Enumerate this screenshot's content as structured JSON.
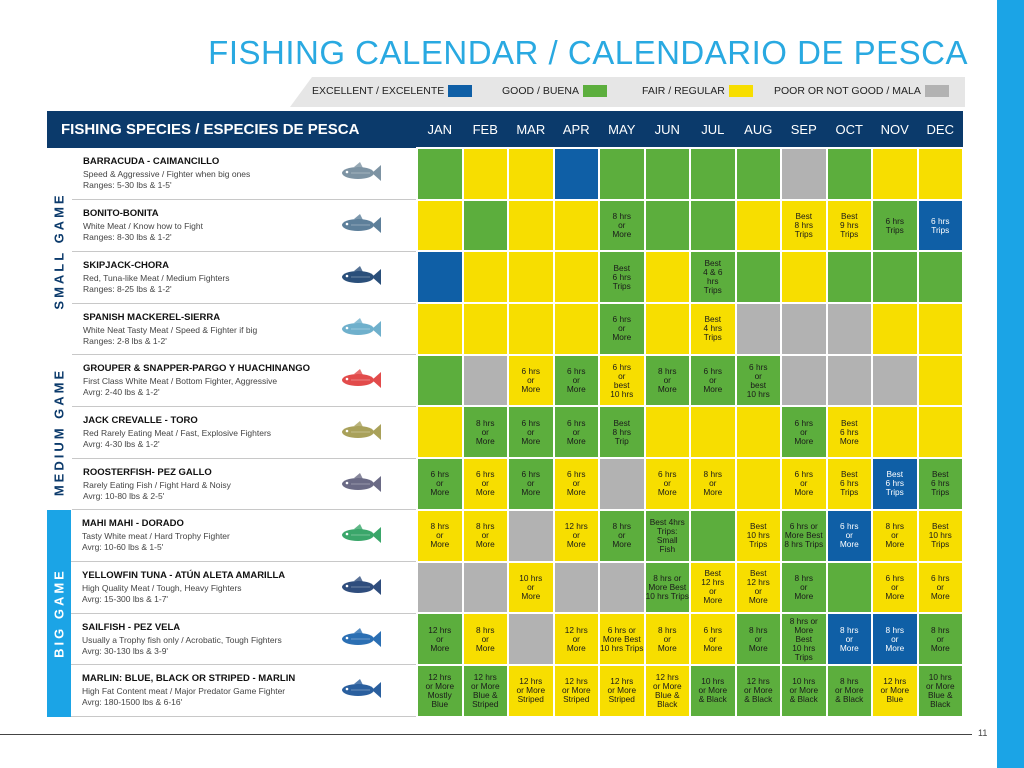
{
  "title": "FISHING CALENDAR / CALENDARIO DE PESCA",
  "page_number": "11",
  "colors": {
    "E": "#0f5fa6",
    "G": "#5cae3d",
    "F": "#f7de00",
    "P": "#b2b2b2",
    "accent": "#29a9e1",
    "header": "#0b3a6b"
  },
  "legend": [
    {
      "label": "EXCELLENT / EXCELENTE",
      "code": "E"
    },
    {
      "label": "GOOD / BUENA",
      "code": "G"
    },
    {
      "label": "FAIR / REGULAR",
      "code": "F"
    },
    {
      "label": "POOR OR NOT GOOD / MALA",
      "code": "P"
    }
  ],
  "header": {
    "species_label": "FISHING SPECIES / ESPECIES DE PESCA",
    "months": [
      "JAN",
      "FEB",
      "MAR",
      "APR",
      "MAY",
      "JUN",
      "JUL",
      "AUG",
      "SEP",
      "OCT",
      "NOV",
      "DEC"
    ]
  },
  "groups": [
    {
      "label": "SMALL GAME",
      "rows": 4
    },
    {
      "label": "MEDIUM GAME",
      "rows": 3
    },
    {
      "label": "BIG GAME",
      "rows": 4
    }
  ],
  "species": [
    {
      "name": "BARRACUDA - CAIMANCILLO",
      "desc1": "Speed & Aggressive / Fighter when big ones",
      "desc2": "Ranges: 5-30 lbs & 1-5'",
      "icon": "barracuda-icon",
      "months": [
        [
          "G",
          ""
        ],
        [
          "F",
          ""
        ],
        [
          "F",
          ""
        ],
        [
          "E",
          ""
        ],
        [
          "G",
          ""
        ],
        [
          "G",
          ""
        ],
        [
          "G",
          ""
        ],
        [
          "G",
          ""
        ],
        [
          "P",
          ""
        ],
        [
          "G",
          ""
        ],
        [
          "F",
          ""
        ],
        [
          "F",
          ""
        ]
      ]
    },
    {
      "name": "BONITO-BONITA",
      "desc1": "White Meat / Know how to Fight",
      "desc2": "Ranges: 8-30 lbs & 1-2'",
      "icon": "bonito-icon",
      "months": [
        [
          "F",
          ""
        ],
        [
          "G",
          ""
        ],
        [
          "F",
          ""
        ],
        [
          "F",
          ""
        ],
        [
          "G",
          "8 hrs\nor\nMore"
        ],
        [
          "G",
          ""
        ],
        [
          "G",
          ""
        ],
        [
          "F",
          ""
        ],
        [
          "F",
          "Best\n8 hrs\nTrips"
        ],
        [
          "F",
          "Best\n9 hrs\nTrips"
        ],
        [
          "G",
          "6 hrs\nTrips"
        ],
        [
          "E",
          "6 hrs\nTrips"
        ]
      ]
    },
    {
      "name": "SKIPJACK-CHORA",
      "desc1": "Red, Tuna-like Meat / Medium Fighters",
      "desc2": "Ranges: 8-25 lbs & 1-2'",
      "icon": "skipjack-icon",
      "months": [
        [
          "E",
          ""
        ],
        [
          "F",
          ""
        ],
        [
          "F",
          ""
        ],
        [
          "F",
          ""
        ],
        [
          "G",
          "Best\n6 hrs\nTrips"
        ],
        [
          "F",
          ""
        ],
        [
          "G",
          "Best\n4 & 6\nhrs\nTrips"
        ],
        [
          "G",
          ""
        ],
        [
          "F",
          ""
        ],
        [
          "G",
          ""
        ],
        [
          "G",
          ""
        ],
        [
          "G",
          ""
        ]
      ]
    },
    {
      "name": "SPANISH MACKEREL-SIERRA",
      "desc1": "White Neat Tasty Meat / Speed & Fighter if big",
      "desc2": "Ranges: 2-8 lbs & 1-2'",
      "icon": "mackerel-icon",
      "months": [
        [
          "F",
          ""
        ],
        [
          "F",
          ""
        ],
        [
          "F",
          ""
        ],
        [
          "F",
          ""
        ],
        [
          "G",
          "6 hrs\nor\nMore"
        ],
        [
          "F",
          ""
        ],
        [
          "F",
          "Best\n4 hrs\nTrips"
        ],
        [
          "P",
          ""
        ],
        [
          "P",
          ""
        ],
        [
          "P",
          ""
        ],
        [
          "F",
          ""
        ],
        [
          "F",
          ""
        ]
      ]
    },
    {
      "name": "GROUPER & SNAPPER-PARGO Y HUACHINANGO",
      "desc1": "First Class White Meat / Bottom Fighter, Aggressive",
      "desc2": "Avrg: 2-40 lbs & 1-2'",
      "icon": "snapper-icon",
      "months": [
        [
          "G",
          ""
        ],
        [
          "P",
          ""
        ],
        [
          "F",
          "6 hrs\nor\nMore"
        ],
        [
          "G",
          "6 hrs\nor\nMore"
        ],
        [
          "F",
          "6 hrs\nor\nbest\n10 hrs"
        ],
        [
          "G",
          "8 hrs\nor\nMore"
        ],
        [
          "G",
          "6 hrs\nor\nMore"
        ],
        [
          "G",
          "6 hrs\nor\nbest\n10 hrs"
        ],
        [
          "P",
          ""
        ],
        [
          "P",
          ""
        ],
        [
          "P",
          ""
        ],
        [
          "F",
          ""
        ]
      ]
    },
    {
      "name": "JACK CREVALLE - TORO",
      "desc1": "Red Rarely Eating Meat / Fast, Explosive Fighters",
      "desc2": "Avrg: 4-30 lbs & 1-2'",
      "icon": "jack-icon",
      "months": [
        [
          "F",
          ""
        ],
        [
          "G",
          "8 hrs\nor\nMore"
        ],
        [
          "G",
          "6 hrs\nor\nMore"
        ],
        [
          "G",
          "6 hrs\nor\nMore"
        ],
        [
          "G",
          "Best\n8 hrs\nTrip"
        ],
        [
          "F",
          ""
        ],
        [
          "F",
          ""
        ],
        [
          "F",
          ""
        ],
        [
          "G",
          "6 hrs\nor\nMore"
        ],
        [
          "F",
          "Best\n6 hrs\nMore"
        ],
        [
          "F",
          ""
        ],
        [
          "F",
          ""
        ]
      ]
    },
    {
      "name": "ROOSTERFISH- PEZ GALLO",
      "desc1": "Rarely Eating Fish / Fight Hard & Noisy",
      "desc2": "Avrg: 10-80 lbs & 2-5'",
      "icon": "roosterfish-icon",
      "months": [
        [
          "G",
          "6 hrs\nor\nMore"
        ],
        [
          "F",
          "6 hrs\nor\nMore"
        ],
        [
          "G",
          "6 hrs\nor\nMore"
        ],
        [
          "F",
          "6 hrs\nor\nMore"
        ],
        [
          "P",
          ""
        ],
        [
          "F",
          "6 hrs\nor\nMore"
        ],
        [
          "F",
          "8 hrs\nor\nMore"
        ],
        [
          "F",
          ""
        ],
        [
          "F",
          "6 hrs\nor\nMore"
        ],
        [
          "F",
          "Best\n6 hrs\nTrips"
        ],
        [
          "E",
          "Best\n6 hrs\nTrips"
        ],
        [
          "G",
          "Best\n6 hrs\nTrips"
        ]
      ]
    },
    {
      "name": "MAHI MAHI - DORADO",
      "desc1": "Tasty White meat / Hard Trophy Fighter",
      "desc2": "Avrg: 10-60 lbs & 1-5'",
      "icon": "dorado-icon",
      "months": [
        [
          "F",
          "8 hrs\nor\nMore"
        ],
        [
          "F",
          "8 hrs\nor\nMore"
        ],
        [
          "P",
          ""
        ],
        [
          "F",
          "12 hrs\nor\nMore"
        ],
        [
          "G",
          "8 hrs\nor\nMore"
        ],
        [
          "G",
          "Best 4hrs\nTrips:\nSmall\nFish"
        ],
        [
          "G",
          ""
        ],
        [
          "F",
          "Best\n10 hrs\nTrips"
        ],
        [
          "G",
          "6 hrs or\nMore Best\n8 hrs Trips"
        ],
        [
          "E",
          "6 hrs\nor\nMore"
        ],
        [
          "F",
          "8 hrs\nor\nMore"
        ],
        [
          "F",
          "Best\n10 hrs\nTrips"
        ]
      ]
    },
    {
      "name": "YELLOWFIN TUNA - ATÚN ALETA AMARILLA",
      "desc1": "High Quality Meat / Tough, Heavy Fighters",
      "desc2": "Avrg: 15-300 lbs & 1-7'",
      "icon": "tuna-icon",
      "months": [
        [
          "P",
          ""
        ],
        [
          "P",
          ""
        ],
        [
          "F",
          "10 hrs\nor\nMore"
        ],
        [
          "P",
          ""
        ],
        [
          "P",
          ""
        ],
        [
          "G",
          "8 hrs or\nMore Best\n10 hrs Trips"
        ],
        [
          "F",
          "Best\n12 hrs\nor\nMore"
        ],
        [
          "F",
          "Best\n12 hrs\nor\nMore"
        ],
        [
          "G",
          "8 hrs\nor\nMore"
        ],
        [
          "G",
          ""
        ],
        [
          "F",
          "6 hrs\nor\nMore"
        ],
        [
          "F",
          "6 hrs\nor\nMore"
        ]
      ]
    },
    {
      "name": "SAILFISH - PEZ VELA",
      "desc1": "Usually a Trophy fish only / Acrobatic, Tough Fighters",
      "desc2": "Avrg: 30-130 lbs & 3-9'",
      "icon": "sailfish-icon",
      "months": [
        [
          "G",
          "12 hrs\nor\nMore"
        ],
        [
          "F",
          "8 hrs\nor\nMore"
        ],
        [
          "P",
          ""
        ],
        [
          "F",
          "12 hrs\nor\nMore"
        ],
        [
          "F",
          "6 hrs or\nMore Best\n10 hrs Trips"
        ],
        [
          "F",
          "8 hrs\nor\nMore"
        ],
        [
          "F",
          "6 hrs\nor\nMore"
        ],
        [
          "G",
          "8 hrs\nor\nMore"
        ],
        [
          "G",
          "8 hrs or\nMore\nBest\n10 hrs\nTrips"
        ],
        [
          "E",
          "8 hrs\nor\nMore"
        ],
        [
          "E",
          "8 hrs\nor\nMore"
        ],
        [
          "G",
          "8 hrs\nor\nMore"
        ]
      ]
    },
    {
      "name": "MARLIN: BLUE, BLACK OR STRIPED - MARLIN",
      "desc1": "High Fat Content meat / Major Predator Game Fighter",
      "desc2": "Avrg: 180-1500 lbs & 6-16'",
      "icon": "marlin-icon",
      "months": [
        [
          "G",
          "12 hrs\nor More\nMostly\nBlue"
        ],
        [
          "G",
          "12 hrs\nor More\nBlue &\nStriped"
        ],
        [
          "F",
          "12 hrs\nor More\nStriped"
        ],
        [
          "F",
          "12 hrs\nor More\nStriped"
        ],
        [
          "F",
          "12 hrs\nor More\nStriped"
        ],
        [
          "F",
          "12 hrs\nor More\nBlue &\nBlack"
        ],
        [
          "G",
          "10 hrs\nor More\n& Black"
        ],
        [
          "G",
          "12 hrs\nor More\n& Black"
        ],
        [
          "G",
          "10 hrs\nor More\n& Black"
        ],
        [
          "G",
          "8 hrs\nor More\n& Black"
        ],
        [
          "F",
          "12 hrs\nor More\nBlue"
        ],
        [
          "G",
          "10 hrs\nor More\nBlue &\nBlack"
        ]
      ]
    }
  ]
}
